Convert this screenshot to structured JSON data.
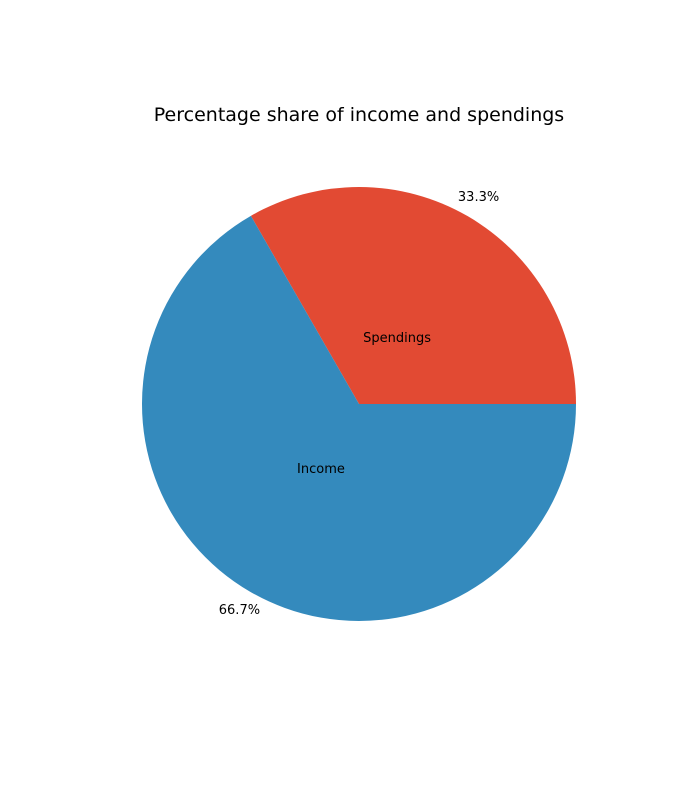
{
  "chart_data": {
    "type": "pie",
    "title": "Percentage share of income and spendings",
    "slices": [
      {
        "label": "Spendings",
        "value": 33.3,
        "pct_label": "33.3%",
        "color": "#E24A33"
      },
      {
        "label": "Income",
        "value": 66.7,
        "pct_label": "66.7%",
        "color": "#348ABD"
      }
    ],
    "start_angle_deg": 0,
    "direction": "counterclockwise",
    "legend": "none"
  }
}
